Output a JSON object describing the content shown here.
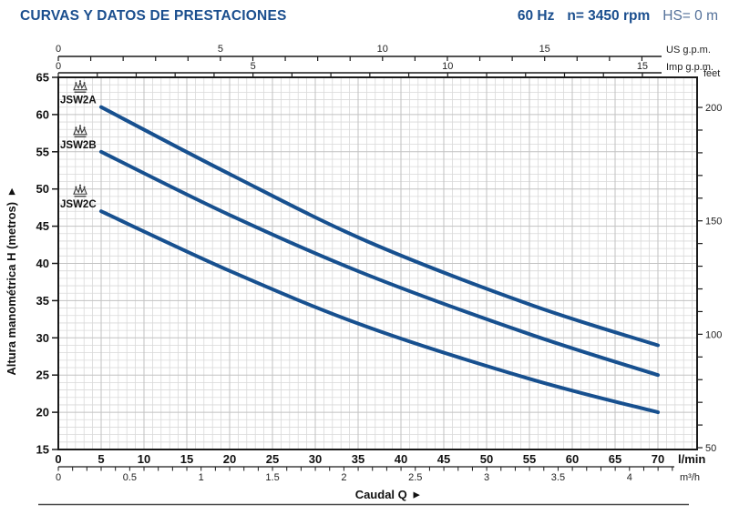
{
  "header": {
    "title": "CURVAS Y DATOS DE PRESTACIONES",
    "frequency": "60 Hz",
    "speed": "n= 3450 rpm",
    "suction": "HS= 0 m"
  },
  "colors": {
    "accent": "#1a4e8e",
    "muted_header": "#54719a",
    "curve": "#17508f",
    "grid_minor": "#d9d9d9",
    "grid_major": "#c2c2c2",
    "axis": "#1a1a1a",
    "crown": "#3a3a3a"
  },
  "chart_data": {
    "type": "line",
    "title": "CURVAS Y DATOS DE PRESTACIONES",
    "xlabel": "Caudal Q",
    "ylabel": "Altura manométrica H (metros)",
    "arrow": "▸",
    "legend_position": "on-curve-left",
    "grid": "on",
    "x_axis_lmin": {
      "label": "l/min",
      "ticks": [
        0,
        5,
        10,
        15,
        20,
        25,
        30,
        35,
        40,
        45,
        50,
        55,
        60,
        65,
        70
      ],
      "range": [
        0,
        74.5
      ]
    },
    "x_axis_m3h": {
      "label": "m³/h",
      "ticks": [
        0,
        0.5,
        1,
        1.5,
        2,
        2.5,
        3,
        3.5,
        4
      ],
      "range": [
        0,
        4.3
      ]
    },
    "x_axis_usgpm": {
      "label": "US g.p.m.",
      "ticks": [
        0,
        5,
        10,
        15
      ],
      "range": [
        0,
        18
      ]
    },
    "x_axis_impgpm": {
      "label": "Imp g.p.m.",
      "ticks": [
        0,
        5,
        10,
        15
      ],
      "range": [
        0,
        15
      ]
    },
    "y_axis_m": {
      "label": "Altura manométrica H (metros)",
      "ticks": [
        15,
        20,
        25,
        30,
        35,
        40,
        45,
        50,
        55,
        60,
        65
      ],
      "range": [
        15,
        65
      ]
    },
    "y_axis_feet": {
      "label": "feet",
      "ticks": [
        50,
        100,
        150,
        200
      ],
      "range": [
        50,
        200
      ]
    },
    "series": [
      {
        "name": "JSW2A",
        "points_lmin_m": [
          [
            5,
            61
          ],
          [
            20,
            52
          ],
          [
            36,
            43
          ],
          [
            55,
            34.5
          ],
          [
            70,
            29
          ]
        ]
      },
      {
        "name": "JSW2B",
        "points_lmin_m": [
          [
            5,
            55
          ],
          [
            20,
            46.5
          ],
          [
            36,
            38.5
          ],
          [
            55,
            30.5
          ],
          [
            70,
            25
          ]
        ]
      },
      {
        "name": "JSW2C",
        "points_lmin_m": [
          [
            5,
            47
          ],
          [
            20,
            39
          ],
          [
            36,
            31.5
          ],
          [
            55,
            24.5
          ],
          [
            70,
            20
          ]
        ]
      }
    ]
  }
}
